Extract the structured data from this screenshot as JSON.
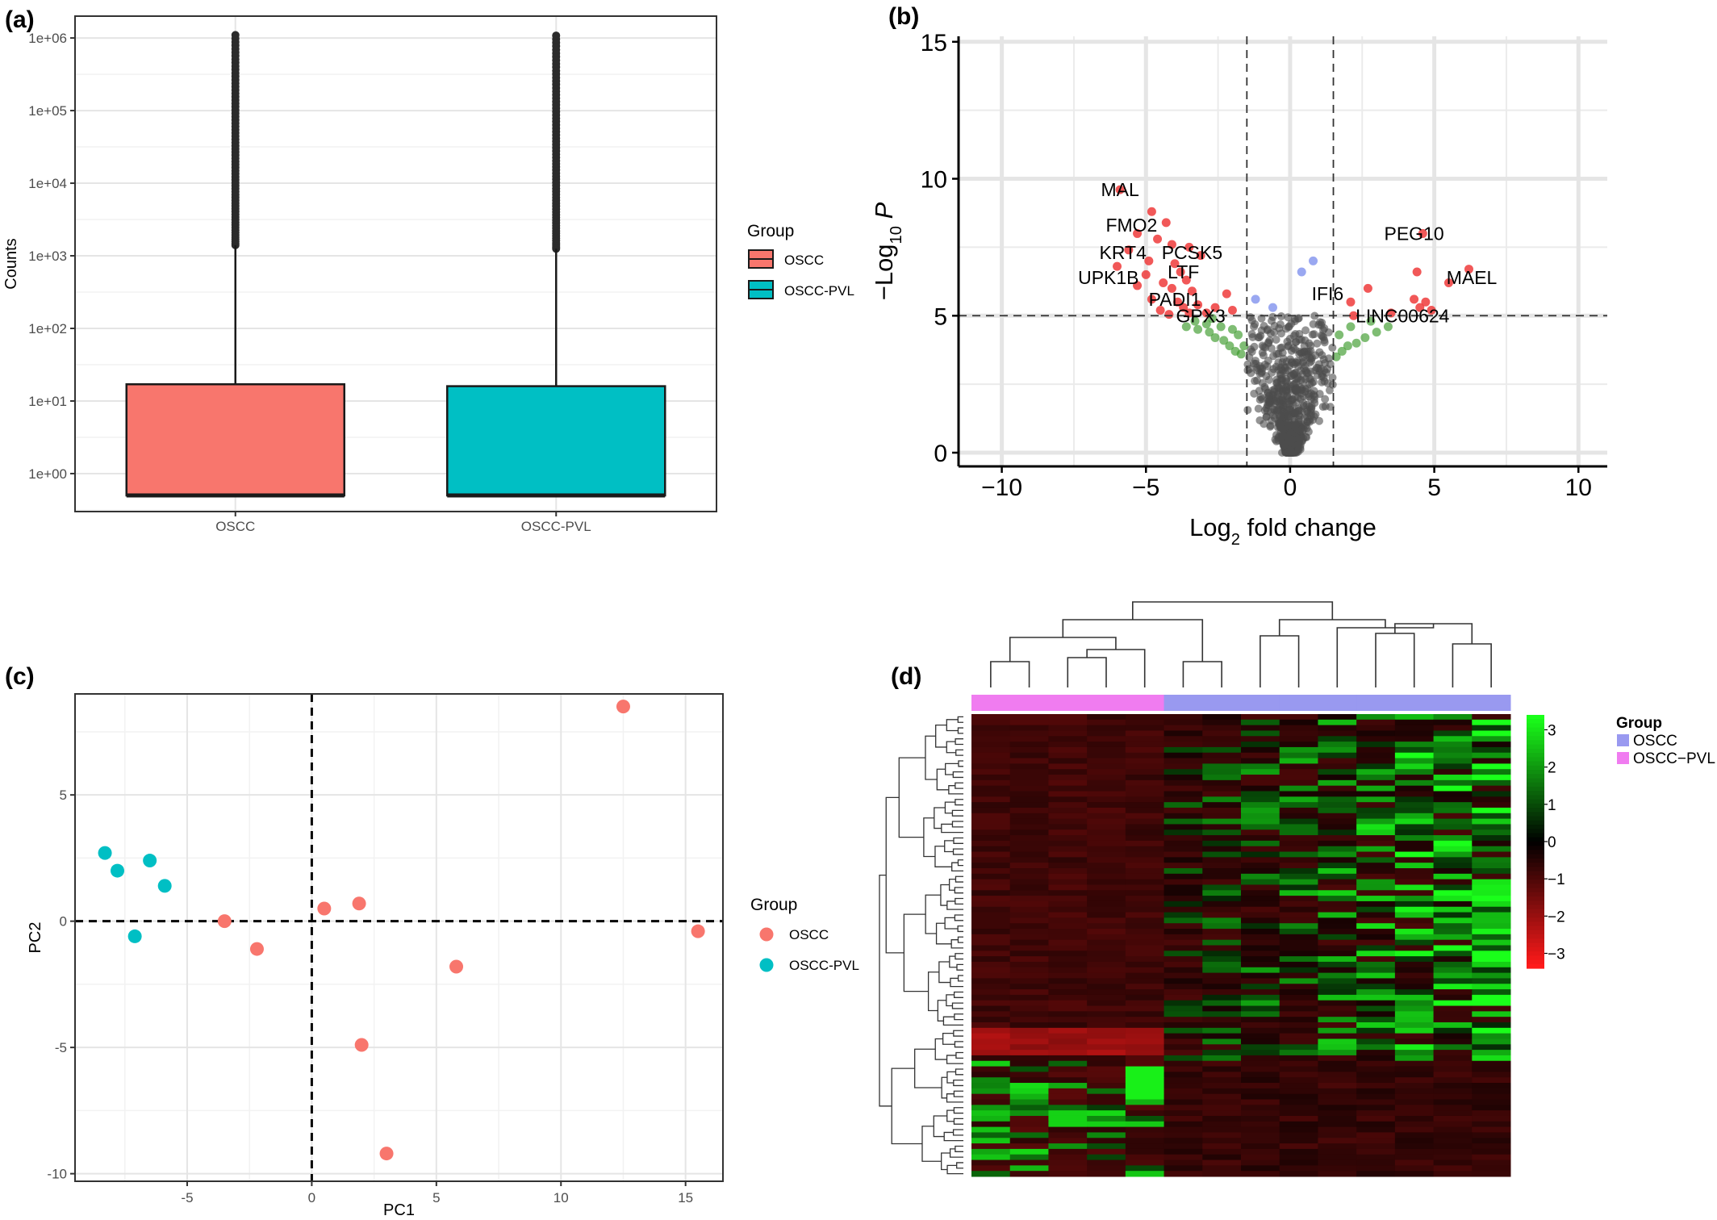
{
  "panels": {
    "a": "(a)",
    "b": "(b)",
    "c": "(c)",
    "d": "(d)"
  },
  "colors": {
    "oscc": "#F8766D",
    "oscc_pvl": "#00BFC4",
    "volcano_sig": "#EE3B3B",
    "volcano_ns": "#4D4D4D",
    "volcano_fc": "#3A9A2A",
    "volcano_p": "#8899EE",
    "heat_low": "#FF1A1A",
    "heat_mid": "#000000",
    "heat_high": "#1AFF1A",
    "anno_oscc": "#9999F0",
    "anno_pvl": "#F07CF0"
  },
  "chart_data": [
    {
      "panel": "a",
      "type": "box",
      "ylabel": "Counts",
      "yscale": "log10",
      "ylim": [
        0.3,
        2000000
      ],
      "yticks": [
        1,
        10,
        100,
        1000,
        10000,
        100000,
        1000000
      ],
      "ytick_labels": [
        "1e+00",
        "1e+01",
        "1e+02",
        "1e+03",
        "1e+04",
        "1e+05",
        "1e+06"
      ],
      "categories": [
        "OSCC",
        "OSCC-PVL"
      ],
      "boxes": [
        {
          "name": "OSCC",
          "min": 0.5,
          "q1": 0.5,
          "median": 0.5,
          "q3": 17,
          "whisker_high": 1400,
          "outlier_max": 1100000
        },
        {
          "name": "OSCC-PVL",
          "min": 0.5,
          "q1": 0.5,
          "median": 0.5,
          "q3": 16,
          "whisker_high": 1250,
          "outlier_max": 1080000
        }
      ],
      "legend": {
        "title": "Group",
        "entries": [
          "OSCC",
          "OSCC-PVL"
        ],
        "placement": "right"
      }
    },
    {
      "panel": "b",
      "type": "scatter",
      "subtype": "volcano",
      "xlabel_html": "Log<tspan baseline-shift='sub' font-size='65%'>2</tspan> fold change",
      "ylabel_html": "−Log<tspan baseline-shift='sub' font-size='65%'>10</tspan> <tspan font-style='italic'>P</tspan>",
      "xlim": [
        -11.5,
        11
      ],
      "ylim": [
        -0.5,
        15.2
      ],
      "xticks": [
        -10,
        -5,
        0,
        5,
        10
      ],
      "xtick_labels": [
        "−10",
        "−5",
        "0",
        "5",
        "10"
      ],
      "yticks": [
        0,
        5,
        10,
        15
      ],
      "ytick_labels": [
        "0",
        "5",
        "10",
        "15"
      ],
      "fc_cutoff": 1.5,
      "p_cutoff": 5,
      "labels": [
        {
          "text": "MAL",
          "x": -5.9,
          "y": 9.6
        },
        {
          "text": "FMO2",
          "x": -5.5,
          "y": 8.3
        },
        {
          "text": "KRT4",
          "x": -5.8,
          "y": 7.3
        },
        {
          "text": "PCSK5",
          "x": -3.4,
          "y": 7.3
        },
        {
          "text": "LTF",
          "x": -3.7,
          "y": 6.6
        },
        {
          "text": "UPK1B",
          "x": -6.3,
          "y": 6.4
        },
        {
          "text": "PADI1",
          "x": -4.0,
          "y": 5.6
        },
        {
          "text": "GPX3",
          "x": -3.1,
          "y": 5.0
        },
        {
          "text": "PEG10",
          "x": 4.3,
          "y": 8.0
        },
        {
          "text": "MAEL",
          "x": 6.3,
          "y": 6.4
        },
        {
          "text": "IFI6",
          "x": 1.3,
          "y": 5.8
        },
        {
          "text": "LINC00624",
          "x": 3.9,
          "y": 5.0
        }
      ],
      "points_sig": [
        [
          -5.9,
          9.6
        ],
        [
          -4.8,
          8.8
        ],
        [
          -4.3,
          8.4
        ],
        [
          -5.3,
          8.0
        ],
        [
          -4.6,
          7.8
        ],
        [
          -4.1,
          7.6
        ],
        [
          -3.5,
          7.5
        ],
        [
          -5.6,
          7.4
        ],
        [
          -3.1,
          7.2
        ],
        [
          -4.9,
          7.0
        ],
        [
          -4.0,
          6.9
        ],
        [
          -6.0,
          6.8
        ],
        [
          -5.0,
          6.5
        ],
        [
          -3.8,
          6.6
        ],
        [
          -3.6,
          6.3
        ],
        [
          -4.4,
          6.2
        ],
        [
          -5.3,
          6.1
        ],
        [
          -4.1,
          6.0
        ],
        [
          -3.4,
          5.9
        ],
        [
          -2.2,
          5.8
        ],
        [
          -4.8,
          5.6
        ],
        [
          -3.9,
          5.5
        ],
        [
          -3.2,
          5.4
        ],
        [
          -2.6,
          5.3
        ],
        [
          -4.5,
          5.2
        ],
        [
          -3.5,
          5.1
        ],
        [
          -2.9,
          5.1
        ],
        [
          -4.2,
          5.05
        ],
        [
          -2.0,
          5.2
        ],
        [
          -3.7,
          5.3
        ],
        [
          4.6,
          8.0
        ],
        [
          6.2,
          6.7
        ],
        [
          4.4,
          6.6
        ],
        [
          5.5,
          6.2
        ],
        [
          2.7,
          6.0
        ],
        [
          4.3,
          5.6
        ],
        [
          2.1,
          5.5
        ],
        [
          4.7,
          5.5
        ],
        [
          4.5,
          5.3
        ],
        [
          2.2,
          5.0
        ],
        [
          4.9,
          5.2
        ],
        [
          3.5,
          5.1
        ]
      ],
      "points_p": [
        [
          0.8,
          7.0
        ],
        [
          0.4,
          6.6
        ],
        [
          -1.2,
          5.6
        ],
        [
          -0.6,
          5.3
        ]
      ],
      "points_fc": [
        [
          -3.6,
          4.6
        ],
        [
          -3.2,
          4.5
        ],
        [
          -2.8,
          4.4
        ],
        [
          -2.6,
          4.2
        ],
        [
          -2.3,
          4.1
        ],
        [
          -2.1,
          3.9
        ],
        [
          -1.9,
          3.7
        ],
        [
          -1.7,
          3.6
        ],
        [
          -2.9,
          4.7
        ],
        [
          -2.4,
          4.6
        ],
        [
          -2.0,
          4.5
        ],
        [
          -1.8,
          4.3
        ],
        [
          -1.6,
          3.9
        ],
        [
          -3.3,
          4.8
        ],
        [
          -2.7,
          4.9
        ],
        [
          1.6,
          3.5
        ],
        [
          1.8,
          3.7
        ],
        [
          2.0,
          3.9
        ],
        [
          2.3,
          4.0
        ],
        [
          2.6,
          4.2
        ],
        [
          3.0,
          4.4
        ],
        [
          3.4,
          4.6
        ],
        [
          1.7,
          4.3
        ],
        [
          2.1,
          4.6
        ],
        [
          2.8,
          4.8
        ]
      ],
      "ns_cloud": {
        "center": 0,
        "spread": 1.4,
        "ymax": 5
      }
    },
    {
      "panel": "c",
      "type": "scatter",
      "subtype": "pca",
      "xlabel": "PC1",
      "ylabel": "PC2",
      "xlim": [
        -9.5,
        16.5
      ],
      "ylim": [
        -10.3,
        9.0
      ],
      "xticks": [
        -5,
        0,
        5,
        10,
        15
      ],
      "xtick_labels": [
        "-5",
        "0",
        "5",
        "10",
        "15"
      ],
      "yticks": [
        -10,
        -5,
        0,
        5
      ],
      "ytick_labels": [
        "-10",
        "-5",
        "0",
        "5"
      ],
      "series": [
        {
          "name": "OSCC",
          "points": [
            [
              12.5,
              8.5
            ],
            [
              15.5,
              -0.4
            ],
            [
              0.5,
              0.5
            ],
            [
              1.9,
              0.7
            ],
            [
              -3.5,
              0.0
            ],
            [
              -2.2,
              -1.1
            ],
            [
              5.8,
              -1.8
            ],
            [
              2.0,
              -4.9
            ],
            [
              3.0,
              -9.2
            ]
          ]
        },
        {
          "name": "OSCC-PVL",
          "points": [
            [
              -8.3,
              2.7
            ],
            [
              -7.8,
              2.0
            ],
            [
              -6.5,
              2.4
            ],
            [
              -5.9,
              1.4
            ],
            [
              -7.1,
              -0.6
            ]
          ]
        }
      ],
      "legend": {
        "title": "Group",
        "entries": [
          "OSCC",
          "OSCC-PVL"
        ],
        "placement": "right"
      }
    },
    {
      "panel": "d",
      "type": "heatmap",
      "n_rows": 84,
      "n_cols": 14,
      "col_groups": [
        "OSCC-PVL",
        "OSCC-PVL",
        "OSCC-PVL",
        "OSCC-PVL",
        "OSCC-PVL",
        "OSCC",
        "OSCC",
        "OSCC",
        "OSCC",
        "OSCC",
        "OSCC",
        "OSCC",
        "OSCC",
        "OSCC"
      ],
      "color_range": [
        -3.4,
        3.4
      ],
      "colorbar_ticks": [
        3,
        2,
        1,
        0,
        -1,
        -2,
        -3
      ],
      "colorbar_labels": [
        "3",
        "2",
        "1",
        "0",
        "−1",
        "−2",
        "−3"
      ],
      "legend": {
        "title": "Group",
        "entries": [
          "OSCC",
          "OSCC−PVL"
        ],
        "placement": "right"
      }
    }
  ]
}
